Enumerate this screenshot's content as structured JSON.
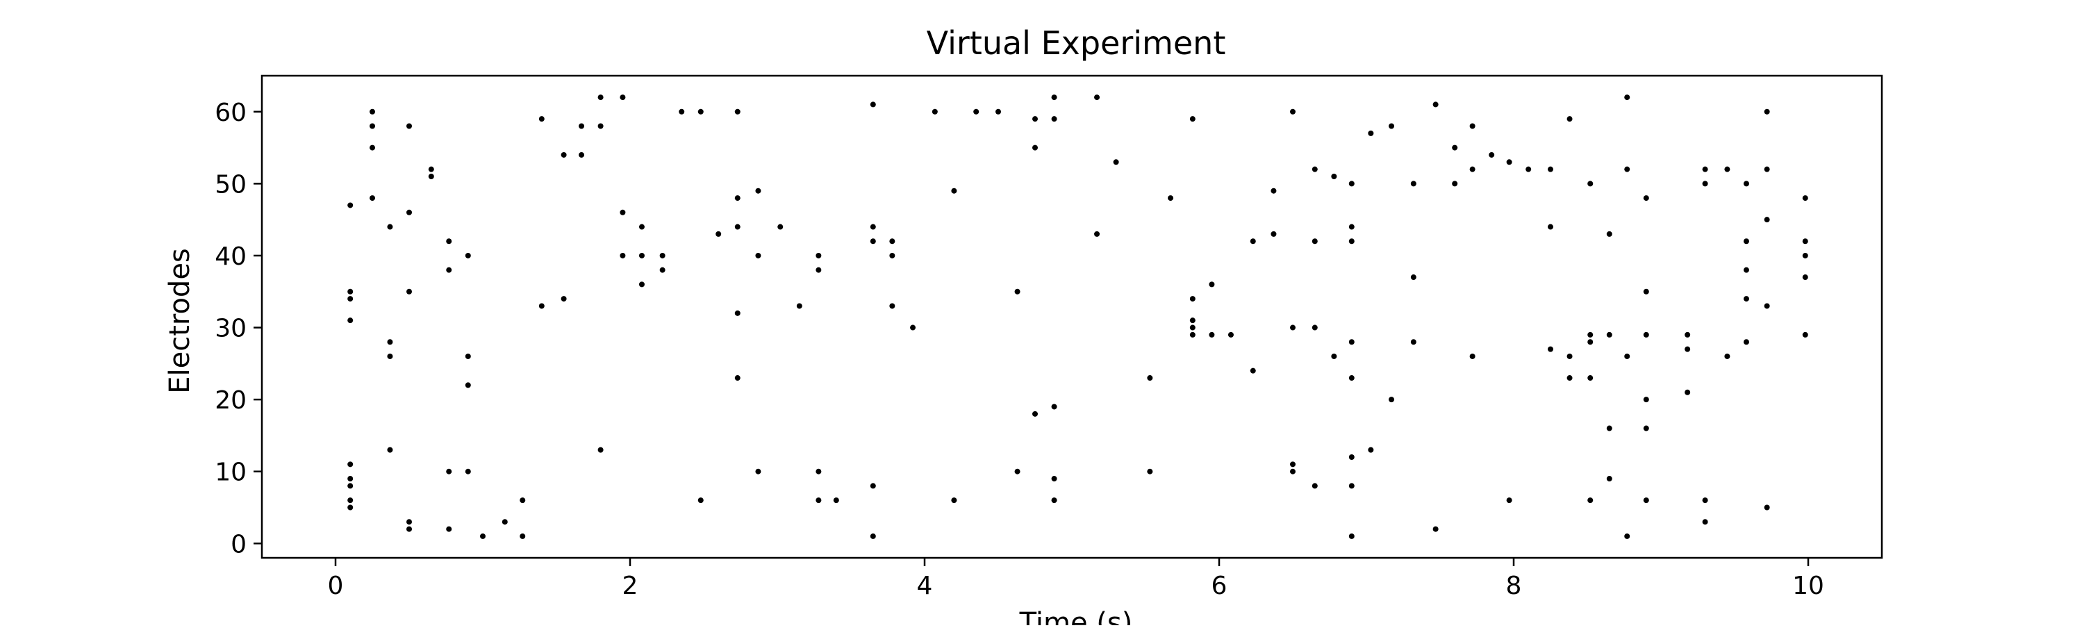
{
  "chart_data": {
    "type": "scatter",
    "title": "Virtual Experiment",
    "xlabel": "Time (s)",
    "ylabel": "Electrodes",
    "xlim": [
      -0.5,
      10.5
    ],
    "ylim": [
      -2,
      65
    ],
    "x_ticks": [
      0,
      2,
      4,
      6,
      8,
      10
    ],
    "y_ticks": [
      0,
      10,
      20,
      30,
      40,
      50,
      60
    ],
    "grid": false,
    "legend": "none",
    "marker_color": "#000000",
    "points": [
      [
        0.1,
        47
      ],
      [
        0.1,
        35
      ],
      [
        0.1,
        34
      ],
      [
        0.1,
        31
      ],
      [
        0.1,
        11
      ],
      [
        0.1,
        9
      ],
      [
        0.1,
        8
      ],
      [
        0.1,
        6
      ],
      [
        0.1,
        5
      ],
      [
        0.25,
        60
      ],
      [
        0.25,
        58
      ],
      [
        0.25,
        55
      ],
      [
        0.25,
        48
      ],
      [
        0.37,
        44
      ],
      [
        0.37,
        28
      ],
      [
        0.37,
        26
      ],
      [
        0.37,
        13
      ],
      [
        0.5,
        58
      ],
      [
        0.5,
        46
      ],
      [
        0.5,
        35
      ],
      [
        0.5,
        3
      ],
      [
        0.5,
        2
      ],
      [
        0.65,
        52
      ],
      [
        0.65,
        51
      ],
      [
        0.77,
        42
      ],
      [
        0.77,
        38
      ],
      [
        0.77,
        10
      ],
      [
        0.77,
        2
      ],
      [
        0.9,
        40
      ],
      [
        0.9,
        26
      ],
      [
        0.9,
        22
      ],
      [
        0.9,
        10
      ],
      [
        1.0,
        1
      ],
      [
        1.15,
        3
      ],
      [
        1.27,
        6
      ],
      [
        1.27,
        1
      ],
      [
        1.4,
        59
      ],
      [
        1.4,
        33
      ],
      [
        1.55,
        54
      ],
      [
        1.55,
        34
      ],
      [
        1.67,
        58
      ],
      [
        1.67,
        54
      ],
      [
        1.8,
        62
      ],
      [
        1.8,
        58
      ],
      [
        1.8,
        13
      ],
      [
        1.95,
        62
      ],
      [
        1.95,
        46
      ],
      [
        1.95,
        40
      ],
      [
        2.08,
        44
      ],
      [
        2.08,
        40
      ],
      [
        2.08,
        36
      ],
      [
        2.22,
        40
      ],
      [
        2.22,
        38
      ],
      [
        2.35,
        60
      ],
      [
        2.48,
        60
      ],
      [
        2.48,
        6
      ],
      [
        2.6,
        43
      ],
      [
        2.73,
        60
      ],
      [
        2.73,
        48
      ],
      [
        2.73,
        44
      ],
      [
        2.73,
        32
      ],
      [
        2.73,
        23
      ],
      [
        2.87,
        49
      ],
      [
        2.87,
        40
      ],
      [
        2.87,
        10
      ],
      [
        3.02,
        44
      ],
      [
        3.15,
        33
      ],
      [
        3.28,
        40
      ],
      [
        3.28,
        38
      ],
      [
        3.28,
        10
      ],
      [
        3.28,
        6
      ],
      [
        3.4,
        6
      ],
      [
        3.65,
        61
      ],
      [
        3.65,
        44
      ],
      [
        3.65,
        42
      ],
      [
        3.65,
        8
      ],
      [
        3.65,
        1
      ],
      [
        3.78,
        42
      ],
      [
        3.78,
        40
      ],
      [
        3.78,
        33
      ],
      [
        3.92,
        30
      ],
      [
        4.07,
        60
      ],
      [
        4.2,
        49
      ],
      [
        4.2,
        6
      ],
      [
        4.35,
        60
      ],
      [
        4.5,
        60
      ],
      [
        4.63,
        35
      ],
      [
        4.63,
        10
      ],
      [
        4.75,
        59
      ],
      [
        4.75,
        55
      ],
      [
        4.75,
        18
      ],
      [
        4.88,
        62
      ],
      [
        4.88,
        59
      ],
      [
        4.88,
        19
      ],
      [
        4.88,
        9
      ],
      [
        4.88,
        6
      ],
      [
        5.17,
        62
      ],
      [
        5.17,
        43
      ],
      [
        5.3,
        53
      ],
      [
        5.53,
        23
      ],
      [
        5.53,
        10
      ],
      [
        5.67,
        48
      ],
      [
        5.82,
        59
      ],
      [
        5.82,
        34
      ],
      [
        5.82,
        31
      ],
      [
        5.82,
        30
      ],
      [
        5.82,
        29
      ],
      [
        5.95,
        36
      ],
      [
        5.95,
        29
      ],
      [
        6.08,
        29
      ],
      [
        6.23,
        42
      ],
      [
        6.23,
        24
      ],
      [
        6.37,
        49
      ],
      [
        6.37,
        43
      ],
      [
        6.5,
        60
      ],
      [
        6.5,
        30
      ],
      [
        6.5,
        11
      ],
      [
        6.5,
        10
      ],
      [
        6.65,
        52
      ],
      [
        6.65,
        42
      ],
      [
        6.65,
        30
      ],
      [
        6.65,
        8
      ],
      [
        6.78,
        51
      ],
      [
        6.78,
        26
      ],
      [
        6.9,
        50
      ],
      [
        6.9,
        44
      ],
      [
        6.9,
        42
      ],
      [
        6.9,
        28
      ],
      [
        6.9,
        23
      ],
      [
        6.9,
        12
      ],
      [
        6.9,
        8
      ],
      [
        6.9,
        1
      ],
      [
        7.03,
        57
      ],
      [
        7.03,
        13
      ],
      [
        7.17,
        58
      ],
      [
        7.17,
        20
      ],
      [
        7.32,
        50
      ],
      [
        7.32,
        37
      ],
      [
        7.32,
        28
      ],
      [
        7.47,
        61
      ],
      [
        7.47,
        2
      ],
      [
        7.6,
        55
      ],
      [
        7.6,
        50
      ],
      [
        7.72,
        58
      ],
      [
        7.72,
        52
      ],
      [
        7.72,
        26
      ],
      [
        7.85,
        54
      ],
      [
        7.97,
        53
      ],
      [
        7.97,
        6
      ],
      [
        8.1,
        52
      ],
      [
        8.25,
        52
      ],
      [
        8.25,
        44
      ],
      [
        8.25,
        27
      ],
      [
        8.38,
        59
      ],
      [
        8.38,
        26
      ],
      [
        8.38,
        23
      ],
      [
        8.52,
        50
      ],
      [
        8.52,
        29
      ],
      [
        8.52,
        28
      ],
      [
        8.52,
        23
      ],
      [
        8.52,
        6
      ],
      [
        8.65,
        43
      ],
      [
        8.65,
        29
      ],
      [
        8.65,
        16
      ],
      [
        8.65,
        9
      ],
      [
        8.77,
        62
      ],
      [
        8.77,
        52
      ],
      [
        8.77,
        26
      ],
      [
        8.77,
        1
      ],
      [
        8.9,
        48
      ],
      [
        8.9,
        35
      ],
      [
        8.9,
        29
      ],
      [
        8.9,
        20
      ],
      [
        8.9,
        16
      ],
      [
        8.9,
        6
      ],
      [
        9.18,
        29
      ],
      [
        9.18,
        27
      ],
      [
        9.18,
        21
      ],
      [
        9.3,
        52
      ],
      [
        9.3,
        50
      ],
      [
        9.3,
        6
      ],
      [
        9.3,
        3
      ],
      [
        9.45,
        52
      ],
      [
        9.45,
        26
      ],
      [
        9.58,
        50
      ],
      [
        9.58,
        42
      ],
      [
        9.58,
        38
      ],
      [
        9.58,
        34
      ],
      [
        9.58,
        28
      ],
      [
        9.72,
        60
      ],
      [
        9.72,
        52
      ],
      [
        9.72,
        45
      ],
      [
        9.72,
        33
      ],
      [
        9.72,
        5
      ],
      [
        9.98,
        48
      ],
      [
        9.98,
        42
      ],
      [
        9.98,
        40
      ],
      [
        9.98,
        37
      ],
      [
        9.98,
        29
      ]
    ]
  }
}
